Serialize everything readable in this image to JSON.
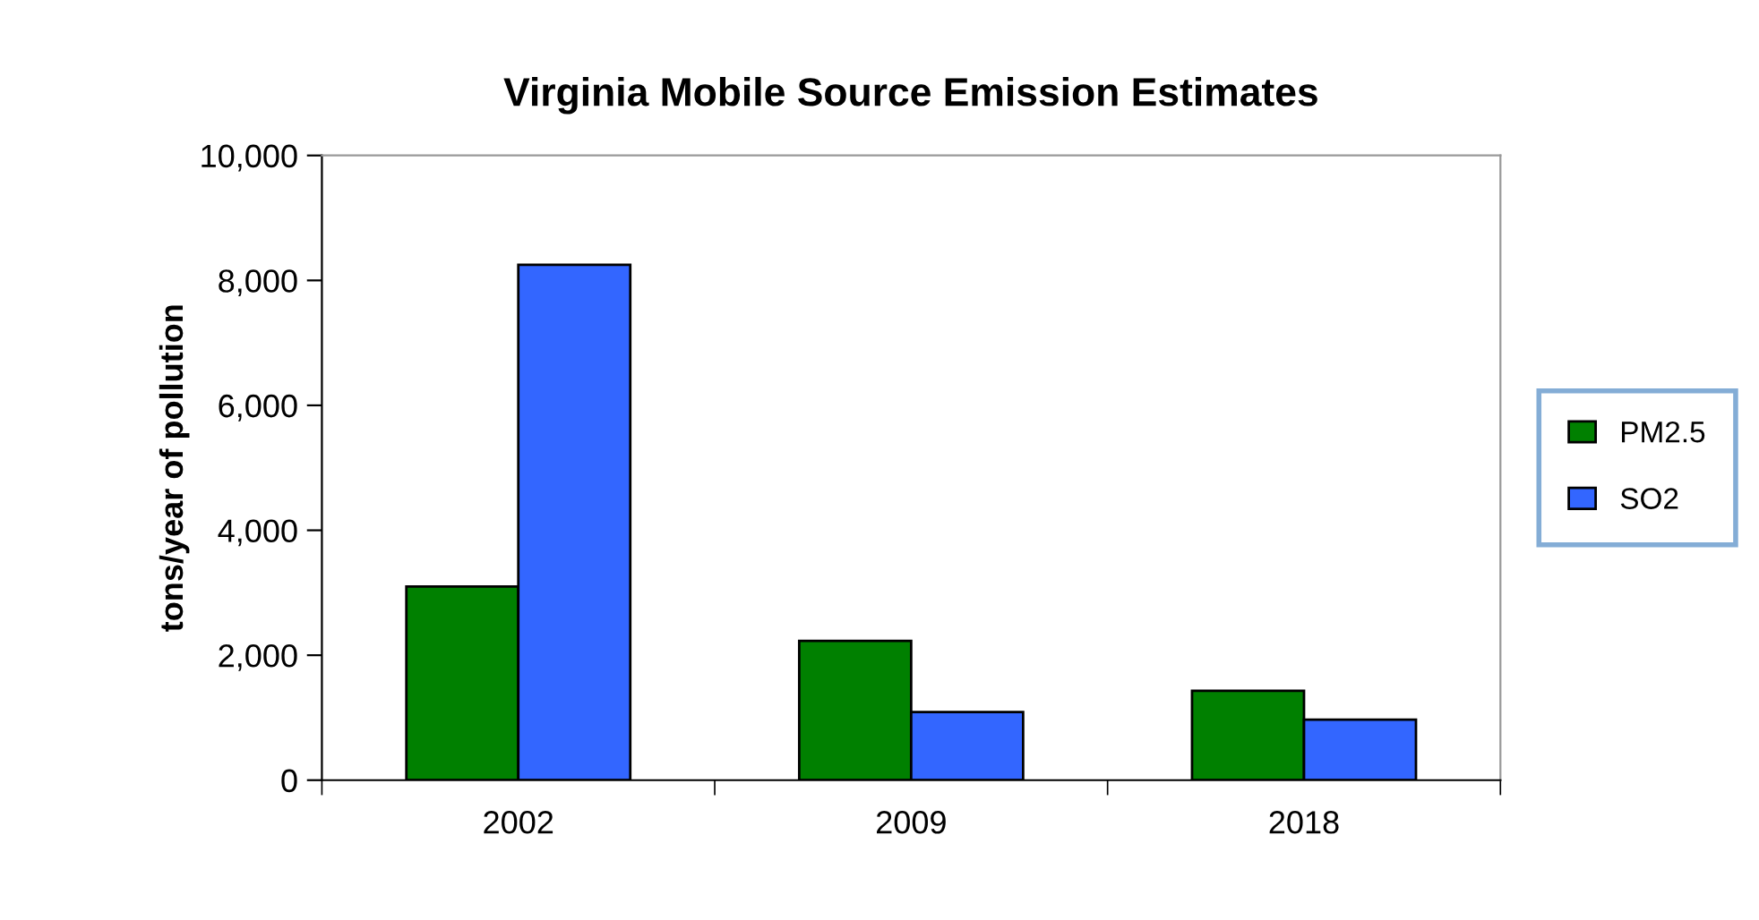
{
  "chart_data": {
    "type": "bar",
    "title": "Virginia Mobile Source Emission Estimates",
    "ylabel": "tons/year of pollution",
    "categories": [
      "2002",
      "2009",
      "2018"
    ],
    "series": [
      {
        "name": "PM2.5",
        "color": "#008000",
        "values": [
          3100,
          2230,
          1430
        ]
      },
      {
        "name": "SO2",
        "color": "#3366ff",
        "values": [
          8250,
          1090,
          970
        ]
      }
    ],
    "ylim": [
      0,
      10000
    ],
    "yticks": [
      {
        "value": 0,
        "label": "0"
      },
      {
        "value": 2000,
        "label": "2,000"
      },
      {
        "value": 4000,
        "label": "4,000"
      },
      {
        "value": 6000,
        "label": "6,000"
      },
      {
        "value": 8000,
        "label": "8,000"
      },
      {
        "value": 10000,
        "label": "10,000"
      }
    ],
    "grid": false,
    "legend": "right"
  }
}
